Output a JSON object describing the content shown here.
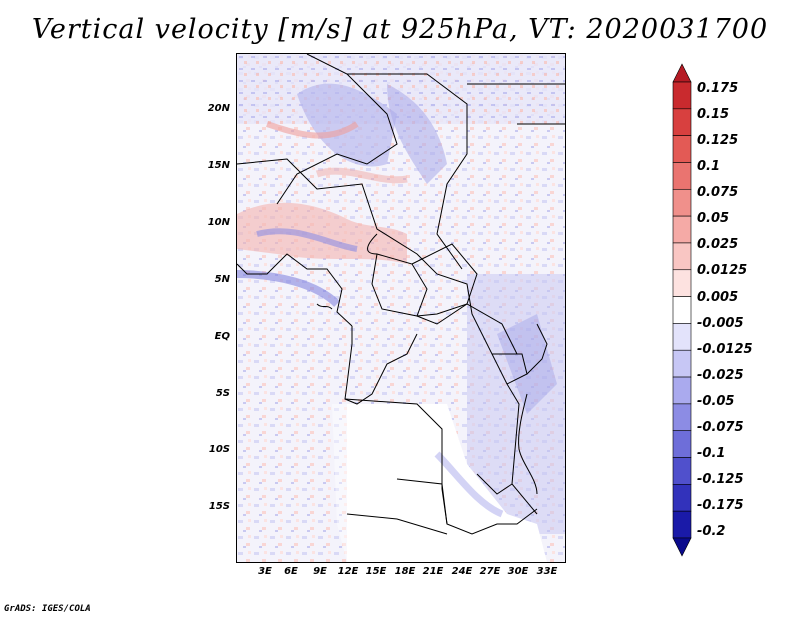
{
  "title": "Vertical velocity [m/s] at 925hPa, VT: 2020031700",
  "footer": "GrADS: IGES/COLA",
  "lat_labels": [
    "20N",
    "15N",
    "10N",
    "5N",
    "EQ",
    "5S",
    "10S",
    "15S"
  ],
  "lon_labels": [
    "3E",
    "6E",
    "9E",
    "12E",
    "15E",
    "18E",
    "21E",
    "24E",
    "27E",
    "30E",
    "33E"
  ],
  "colorbar": {
    "labels": [
      "0.175",
      "0.15",
      "0.125",
      "0.1",
      "0.075",
      "0.05",
      "0.025",
      "0.0125",
      "0.005",
      "-0.005",
      "-0.0125",
      "-0.025",
      "-0.05",
      "-0.075",
      "-0.1",
      "-0.125",
      "-0.175",
      "-0.2"
    ],
    "colors": [
      "#b51b24",
      "#c92a2e",
      "#d8403f",
      "#e35a55",
      "#ea7470",
      "#f0908b",
      "#f5aaa6",
      "#f9c6c3",
      "#fde2e0",
      "#ffffff",
      "#e3e3fb",
      "#c7c7f5",
      "#aaaaee",
      "#8c8ce4",
      "#6e6ed9",
      "#5050cc",
      "#3232bb",
      "#1a1aa8",
      "#0a0a8c"
    ]
  }
}
